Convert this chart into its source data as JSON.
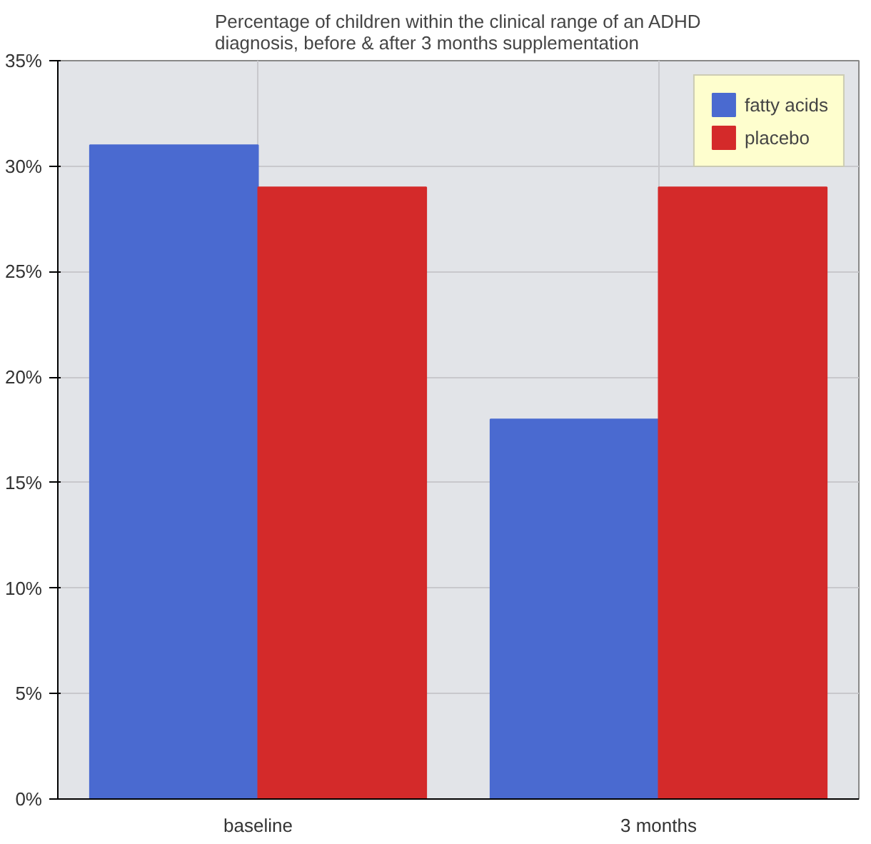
{
  "chart_data": {
    "type": "bar",
    "title": "Percentage of children within the clinical range of an ADHD\ndiagnosis, before & after 3 months supplementation",
    "categories": [
      "baseline",
      "3 months"
    ],
    "series": [
      {
        "name": "fatty acids",
        "color": "#4a6ad0",
        "values": [
          31,
          18
        ]
      },
      {
        "name": "placebo",
        "color": "#d42a2a",
        "values": [
          29,
          29
        ]
      }
    ],
    "ylim": [
      0,
      35
    ],
    "yticks": [
      {
        "value": 0,
        "label": "0%"
      },
      {
        "value": 5,
        "label": "5%"
      },
      {
        "value": 10,
        "label": "10%"
      },
      {
        "value": 15,
        "label": "15%"
      },
      {
        "value": 20,
        "label": "20%"
      },
      {
        "value": 25,
        "label": "25%"
      },
      {
        "value": 30,
        "label": "30%"
      },
      {
        "value": 35,
        "label": "35%"
      }
    ],
    "grid": true,
    "legend": "top right"
  }
}
